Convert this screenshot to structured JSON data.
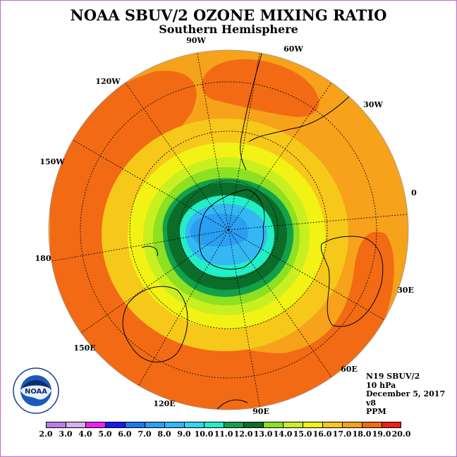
{
  "title": "NOAA SBUV/2 OZONE MIXING RATIO",
  "subtitle": "Southern Hemisphere",
  "longitude_labels": [
    "90W",
    "60W",
    "120W",
    "30W",
    "150W",
    "0",
    "180",
    "30E",
    "150E",
    "60E",
    "120E",
    "90E"
  ],
  "info": {
    "satellite": "N19 SBUV/2",
    "level": "10 hPa",
    "date": "December 5, 2017",
    "version": "v8",
    "units": "PPM"
  },
  "logo": {
    "text": "NOAA",
    "ring_text": "NATIONAL OCEANIC AND ATMOSPHERIC ADMINISTRATION",
    "ring_text_bottom": "U.S. DEPARTMENT OF COMMERCE"
  },
  "colorbar": {
    "labels": [
      "2.0",
      "3.0",
      "4.0",
      "5.0",
      "6.0",
      "7.0",
      "8.0",
      "9.0",
      "10.0",
      "11.0",
      "12.0",
      "13.0",
      "14.0",
      "15.0",
      "16.0",
      "17.0",
      "18.0",
      "19.0",
      "20.0"
    ],
    "colors": [
      "#b97fe8",
      "#d8b0ee",
      "#ee22ee",
      "#1a1aee",
      "#1a7aee",
      "#2a9ef2",
      "#34b8f4",
      "#2cd8f4",
      "#22eec8",
      "#12a04a",
      "#0a6e2a",
      "#8ee022",
      "#c8f020",
      "#f2f214",
      "#f6c81a",
      "#f6a21a",
      "#f26a14",
      "#ee2212",
      "#8c5a3c"
    ]
  },
  "map_colors": {
    "outer": "#f6a21a",
    "orange": "#f26a14",
    "gold": "#f6c81a",
    "yellow": "#f2f214",
    "lime": "#c8f020",
    "green_light": "#8ee022",
    "green": "#12a04a",
    "green_dark": "#0a6e2a",
    "cyan": "#22eec8",
    "light_blue": "#34b8f4",
    "blue": "#2a9ef2"
  }
}
